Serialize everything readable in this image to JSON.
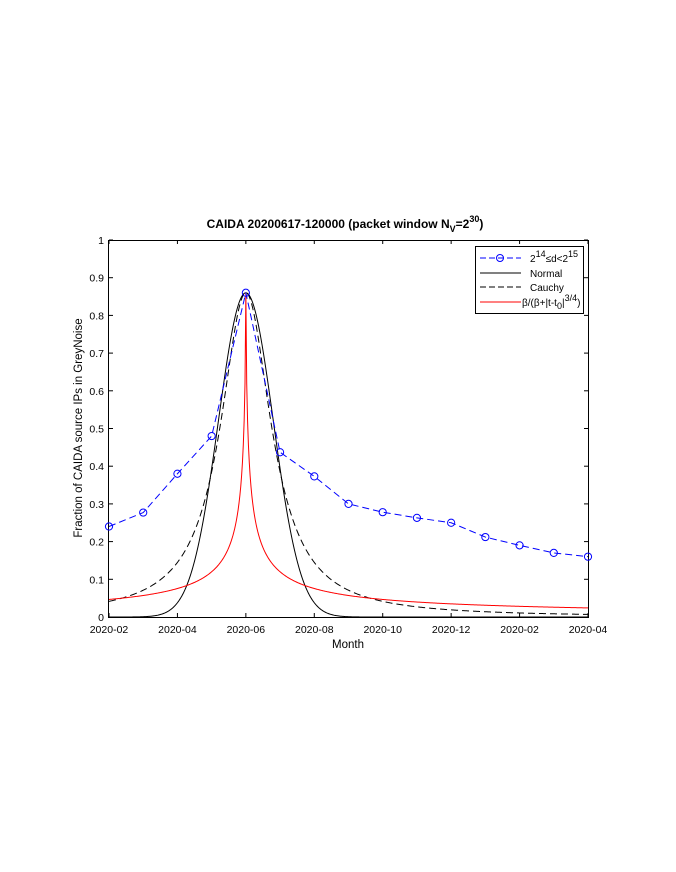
{
  "chart_data": {
    "type": "line",
    "title_main": "CAIDA 20200617-120000 (packet window N",
    "title_sub": "V",
    "title_eq": "=2",
    "title_sup": "30",
    "title_close": ")",
    "xlabel": "Month",
    "ylabel": "Fraction of CAIDA source IPs in GreyNoise",
    "x_tick_labels": [
      "2020-02",
      "2020-04",
      "2020-06",
      "2020-08",
      "2020-10",
      "2020-12",
      "2020-02",
      "2020-04"
    ],
    "x_tick_months": [
      0,
      2,
      4,
      6,
      8,
      10,
      12,
      14
    ],
    "y_tick_labels": [
      "0",
      "0.1",
      "0.2",
      "0.3",
      "0.4",
      "0.5",
      "0.6",
      "0.7",
      "0.8",
      "0.9",
      "1"
    ],
    "xlim": [
      0,
      14
    ],
    "ylim": [
      0,
      1
    ],
    "legend_position": "top-right",
    "series": [
      {
        "key": "data",
        "style": "dashed-with-circle-markers",
        "color": "#0000ff",
        "x_months": [
          0,
          1,
          2,
          3,
          4,
          5,
          6,
          7,
          8,
          9,
          10,
          11,
          12,
          13,
          14
        ],
        "values": [
          0.24,
          0.277,
          0.38,
          0.48,
          0.86,
          0.437,
          0.373,
          0.3,
          0.278,
          0.263,
          0.25,
          0.212,
          0.19,
          0.17,
          0.16
        ]
      },
      {
        "key": "normal",
        "name": "Normal",
        "style": "solid",
        "color": "#000000",
        "model": {
          "peak": 0.86,
          "center_month": 4,
          "sigma_months": 0.8
        }
      },
      {
        "key": "cauchy",
        "name": "Cauchy",
        "style": "dashed",
        "color": "#000000",
        "model": {
          "peak": 0.86,
          "center_month": 4,
          "gamma_months": 0.9
        }
      },
      {
        "key": "powerlaw",
        "style": "solid",
        "color": "#ff0000",
        "model": {
          "peak": 0.86,
          "center_month": 4,
          "beta": 0.162,
          "exponent": 0.75
        }
      }
    ],
    "legend": {
      "data_label": {
        "base1": "2",
        "sup1": "14",
        "mid": "≤d<2",
        "sup2": "15"
      },
      "normal_label": "Normal",
      "cauchy_label": "Cauchy",
      "fit_label": {
        "pre": "β/(β+|t-t",
        "sub": "0",
        "mid": "|",
        "sup": "3/4",
        "post": ")"
      }
    }
  }
}
